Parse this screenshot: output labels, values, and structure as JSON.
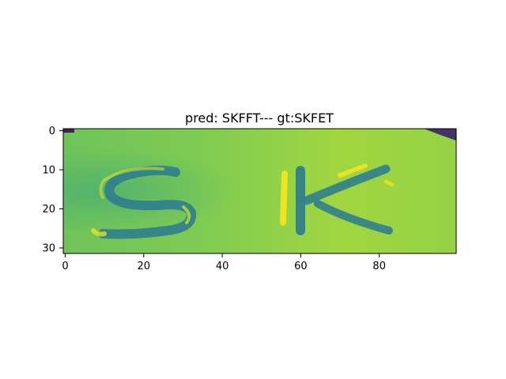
{
  "figure": {
    "title": "pred: SKFFT--- gt:SKFET",
    "colormap": "viridis"
  },
  "axes": {
    "x_ticks": [
      0,
      20,
      40,
      60,
      80
    ],
    "y_ticks": [
      0,
      10,
      20,
      30
    ],
    "x_range": [
      0,
      100
    ],
    "y_range": [
      0,
      32
    ],
    "origin": "top-left",
    "grid": false
  },
  "image": {
    "content": "SK",
    "background_color": "#8ccf46",
    "stroke_dark_color": "#2a7f8e",
    "stroke_light_color": "#f2e51f",
    "corner_color": "#440154"
  }
}
